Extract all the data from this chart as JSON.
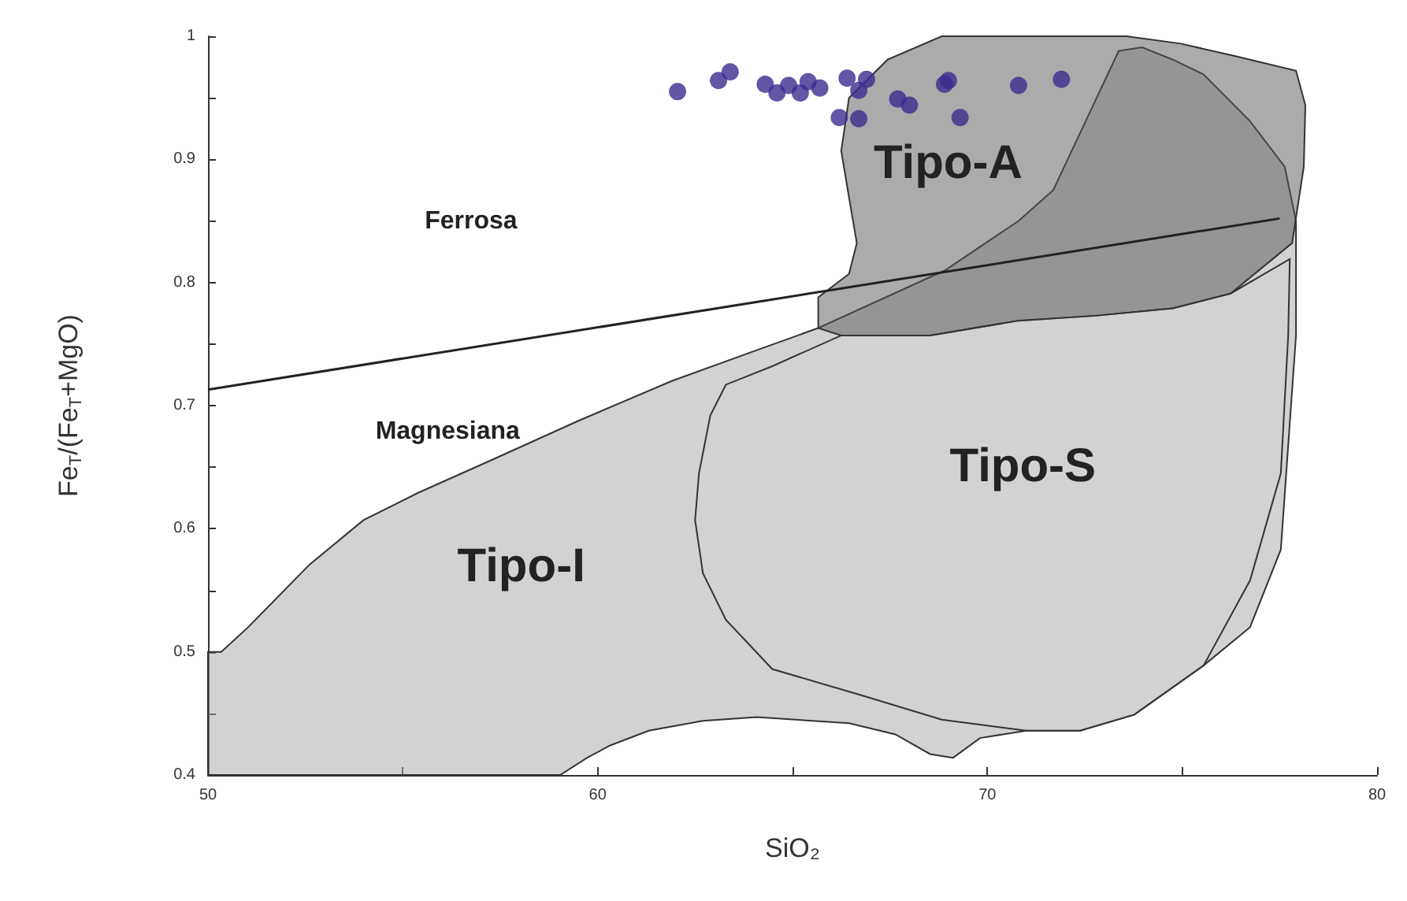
{
  "chart_data": {
    "type": "scatter",
    "xlabel": "SiO₂",
    "ylabel": "Fe$_{T}$/(Fe$_{T}$+MgO)",
    "xlim": [
      50,
      80
    ],
    "xticks": [
      50,
      {
        "value": 55,
        "label": null
      },
      60,
      {
        "value": 65,
        "label": null
      },
      70,
      {
        "value": 75,
        "label": null
      },
      80
    ],
    "ylim": [
      0.4,
      1
    ],
    "yticks": [
      0.4,
      {
        "value": 0.45,
        "label": null
      },
      0.5,
      {
        "value": 0.55,
        "label": null
      },
      0.6,
      {
        "value": 0.65,
        "label": null
      },
      0.7,
      {
        "value": 0.75,
        "label": null
      },
      0.8,
      {
        "value": 0.85,
        "label": null
      },
      0.9,
      {
        "value": 0.95,
        "label": null
      },
      1
    ],
    "grid": false,
    "legend": false,
    "series": [
      {
        "type": "area",
        "name": "Tipo-I",
        "color": "#d2d2d2",
        "x": [
          50,
          50,
          50.34,
          51.03,
          52.61,
          53.99,
          55.38,
          57.36,
          59.53,
          61.9,
          64.08,
          65.66,
          68.92,
          70.8,
          71.69,
          73.37,
          73.97,
          74.76,
          75.55,
          76.74,
          77.63,
          77.92,
          77.92,
          77.53,
          76.74,
          75.55,
          73.77,
          72.38,
          71,
          69.81,
          69.12,
          68.53,
          67.64,
          66.45,
          64.08,
          62.7,
          61.31,
          60.32,
          59.73,
          59.04
        ],
        "values": [
          0.4,
          0.5,
          0.5,
          0.52,
          0.571,
          0.607,
          0.629,
          0.657,
          0.688,
          0.72,
          0.745,
          0.763,
          0.81,
          0.85,
          0.875,
          0.988,
          0.991,
          0.981,
          0.969,
          0.931,
          0.894,
          0.85,
          0.757,
          0.583,
          0.52,
          0.489,
          0.449,
          0.436,
          0.436,
          0.43,
          0.414,
          0.417,
          0.433,
          0.442,
          0.447,
          0.444,
          0.436,
          0.424,
          0.414,
          0.4
        ]
      },
      {
        "type": "area",
        "name": "Tipo-A",
        "color": "#ababab",
        "x": [
          65.66,
          66.45,
          66.65,
          66.45,
          66.25,
          66.45,
          67.44,
          68.83,
          71.2,
          73.57,
          74.96,
          76.34,
          77.92,
          78.16,
          78.12,
          77.82,
          76.24,
          74.76,
          72.78,
          70.8,
          68.53,
          66.25,
          65.66
        ],
        "values": [
          0.788,
          0.807,
          0.832,
          0.869,
          0.907,
          0.95,
          0.981,
          1,
          1,
          1,
          0.994,
          0.984,
          0.972,
          0.944,
          0.894,
          0.832,
          0.791,
          0.779,
          0.773,
          0.769,
          0.757,
          0.757,
          0.763
        ]
      },
      {
        "type": "area",
        "name": "Tipo-S",
        "color": "#e8e8e8",
        "x": [
          63.29,
          62.89,
          62.6,
          62.5,
          62.7,
          63.29,
          64.48,
          66.85,
          68.83,
          71,
          72.38,
          73.77,
          75.55,
          76.74,
          77.53,
          77.72,
          77.76,
          76.24,
          74.76,
          72.78,
          70.8,
          68.53,
          66.25,
          64.48
        ],
        "values": [
          0.717,
          0.692,
          0.645,
          0.607,
          0.564,
          0.526,
          0.486,
          0.464,
          0.445,
          0.436,
          0.436,
          0.449,
          0.489,
          0.558,
          0.645,
          0.757,
          0.819,
          0.791,
          0.779,
          0.773,
          0.769,
          0.757,
          0.757,
          0.732
        ]
      },
      {
        "type": "line",
        "color": "#222222",
        "x": [
          50,
          77.5
        ],
        "values": [
          0.713,
          0.852
        ]
      },
      {
        "marker": "circle",
        "color": "#3d2b8e",
        "x": [
          62.05,
          63.1,
          63.4,
          64.3,
          64.6,
          64.9,
          65.2,
          65.4,
          65.7,
          66.4,
          66.9,
          66.7,
          66.2,
          66.7,
          67.7,
          68.0,
          68.9,
          69.0,
          69.3,
          70.8,
          71.9
        ],
        "values": [
          0.955,
          0.964,
          0.971,
          0.961,
          0.954,
          0.96,
          0.954,
          0.963,
          0.958,
          0.966,
          0.965,
          0.956,
          0.934,
          0.933,
          0.949,
          0.944,
          0.961,
          0.964,
          0.934,
          0.96,
          0.965
        ]
      }
    ],
    "annotations": [
      "Ferrosa",
      "Magnesiana"
    ]
  }
}
